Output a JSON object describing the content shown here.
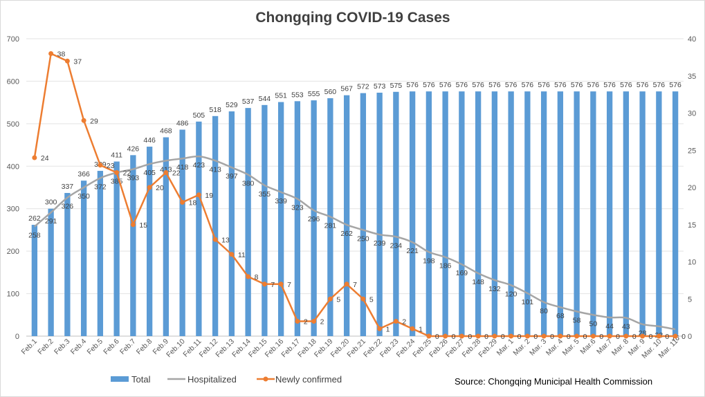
{
  "chart_data": {
    "type": "bar",
    "title": "Chongqing COVID-19 Cases",
    "source": "Source: Chongqing Municipal Health Commission",
    "categories": [
      "Feb.1",
      "Feb.2",
      "Feb.3",
      "Feb.4",
      "Feb.5",
      "Feb.6",
      "Feb.7",
      "Feb.8",
      "Feb.9",
      "Feb.10",
      "Feb.11",
      "Feb.12",
      "Feb.13",
      "Feb.14",
      "Feb.15",
      "Feb.16",
      "Feb.17",
      "Feb.18",
      "Feb.19",
      "Feb.20",
      "Feb.21",
      "Feb.22",
      "Feb.23",
      "Feb.24",
      "Feb.25",
      "Feb.26",
      "Feb.27",
      "Feb.28",
      "Feb.29",
      "Mar. 1",
      "Mar. 2",
      "Mar. 3",
      "Mar. 4",
      "Mar. 5",
      "Mar.6",
      "Mar.7",
      "Mar. 8",
      "Mar. 9",
      "Mar. 10",
      "Mar. 11"
    ],
    "y_left": {
      "min": 0,
      "max": 700,
      "step": 100
    },
    "y_right": {
      "min": 0,
      "max": 40,
      "step": 5
    },
    "grid": true,
    "legend_position": "bottom",
    "series": [
      {
        "name": "Total",
        "type": "bar",
        "axis": "left",
        "color": "#5b9bd5",
        "values": [
          262,
          300,
          337,
          366,
          389,
          411,
          426,
          446,
          468,
          486,
          505,
          518,
          529,
          537,
          544,
          551,
          553,
          555,
          560,
          567,
          572,
          573,
          575,
          576,
          576,
          576,
          576,
          576,
          576,
          576,
          576,
          576,
          576,
          576,
          576,
          576,
          576,
          576,
          576,
          576
        ]
      },
      {
        "name": "Hospitalized",
        "type": "line",
        "axis": "left",
        "color": "#a5a5a5",
        "values": [
          258,
          291,
          326,
          350,
          372,
          385,
          393,
          405,
          413,
          418,
          423,
          413,
          397,
          380,
          355,
          339,
          323,
          296,
          281,
          262,
          250,
          239,
          234,
          221,
          198,
          186,
          169,
          148,
          132,
          120,
          101,
          80,
          68,
          58,
          50,
          44,
          43,
          28,
          23,
          16
        ]
      },
      {
        "name": "Newly confirmed",
        "type": "line",
        "axis": "right",
        "color": "#ed7d31",
        "values": [
          24,
          38,
          37,
          29,
          23,
          22,
          15,
          20,
          22,
          18,
          19,
          13,
          11,
          8,
          7,
          7,
          2,
          2,
          5,
          7,
          5,
          1,
          2,
          1,
          0,
          0,
          0,
          0,
          0,
          0,
          0,
          0,
          0,
          0,
          0,
          0,
          0,
          0,
          0,
          0
        ]
      }
    ]
  }
}
